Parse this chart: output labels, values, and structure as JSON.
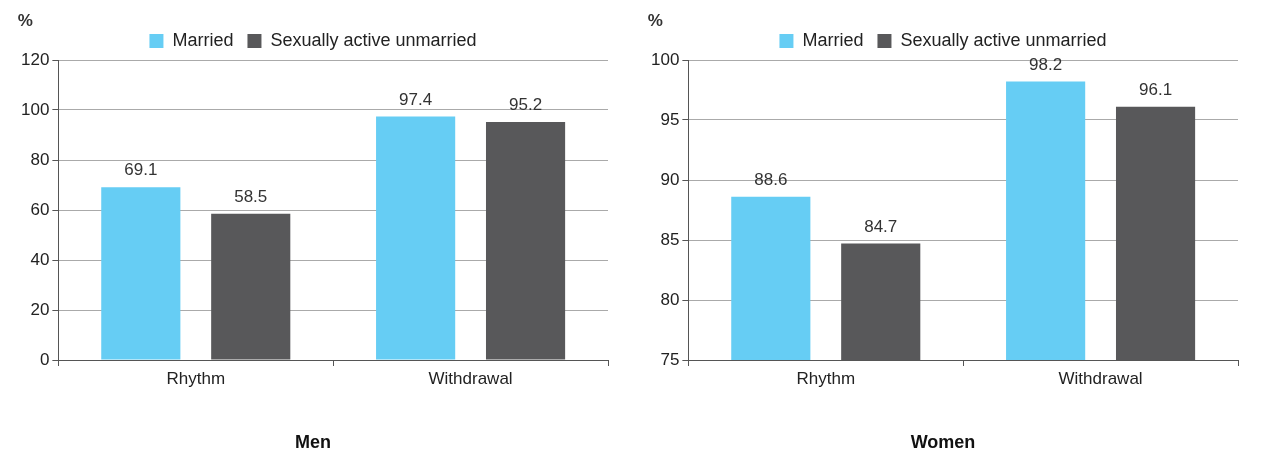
{
  "chart_data": [
    {
      "type": "bar",
      "title": "Men",
      "ylabel": "%",
      "categories": [
        "Rhythm",
        "Withdrawal"
      ],
      "series": [
        {
          "name": "Married",
          "color": "#66cdf4",
          "values": [
            69.1,
            97.4
          ]
        },
        {
          "name": "Sexually active unmarried",
          "color": "#58585a",
          "values": [
            58.5,
            95.2
          ]
        }
      ],
      "ylim": [
        0,
        120
      ],
      "yticks": [
        0,
        20,
        40,
        60,
        80,
        100,
        120
      ],
      "grid": "y",
      "legend": "top",
      "data_labels": true
    },
    {
      "type": "bar",
      "title": "Women",
      "ylabel": "%",
      "categories": [
        "Rhythm",
        "Withdrawal"
      ],
      "series": [
        {
          "name": "Married",
          "color": "#66cdf4",
          "values": [
            88.6,
            98.2
          ]
        },
        {
          "name": "Sexually active unmarried",
          "color": "#58585a",
          "values": [
            84.7,
            96.1
          ]
        }
      ],
      "ylim": [
        75,
        100
      ],
      "yticks": [
        75,
        80,
        85,
        90,
        95,
        100
      ],
      "grid": "y",
      "legend": "top",
      "data_labels": true
    }
  ]
}
